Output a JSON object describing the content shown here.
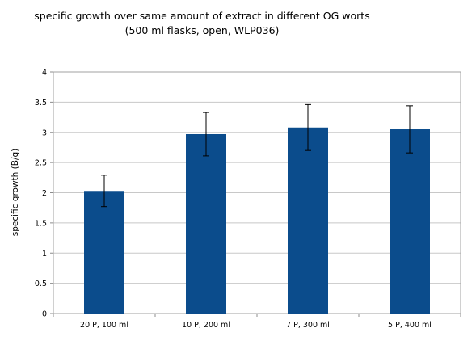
{
  "chart_data": {
    "type": "bar",
    "title": "specific growth over same amount of extract in different OG worts",
    "subtitle": "(500 ml flasks, open, WLP036)",
    "ylabel": "specific growth (B/g)",
    "xlabel": "",
    "categories": [
      "20 P, 100 ml",
      "10 P, 200 ml",
      "7 P, 300 ml",
      "5 P, 400 ml"
    ],
    "values": [
      2.03,
      2.97,
      3.08,
      3.05
    ],
    "error": [
      0.26,
      0.36,
      0.38,
      0.39
    ],
    "ylim": [
      0,
      4
    ],
    "yticks": [
      "0",
      "0.5",
      "1",
      "1.5",
      "2",
      "2.5",
      "3",
      "3.5",
      "4"
    ],
    "grid": true,
    "legend": "none",
    "bar_color": "#0b4c8c"
  }
}
